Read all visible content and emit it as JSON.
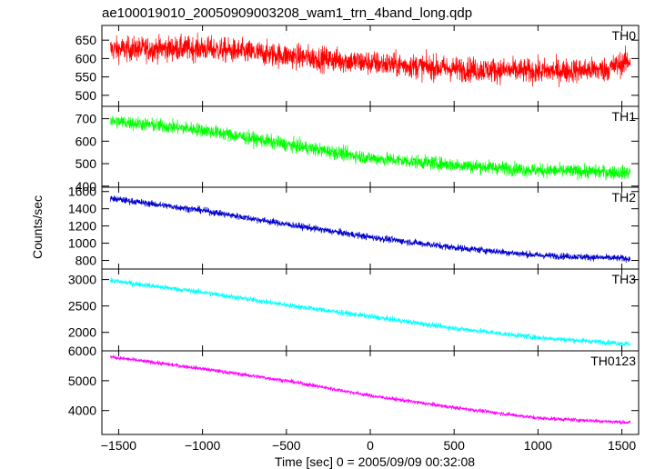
{
  "chart_data": {
    "type": "line",
    "title": "ae100019010_20050909003208_wam1_trn_4band_long.qdp",
    "xlabel": "Time [sec] 0 = 2005/09/09 00:32:08",
    "ylabel": "Counts/sec",
    "xlim": [
      -1600,
      1600
    ],
    "x_ticks": [
      -1500,
      -1000,
      -500,
      0,
      500,
      1000,
      1500
    ],
    "x_tick_labels": [
      "−1500",
      "−1000",
      "−500",
      "0",
      "500",
      "1000",
      "1500"
    ],
    "shared_x_range": [
      -1550,
      1550
    ],
    "panels": [
      {
        "name": "TH0",
        "color": "#ff0000",
        "ylim": [
          470,
          690
        ],
        "y_ticks": [
          500,
          550,
          600,
          650
        ],
        "trend": {
          "x": [
            -1550,
            -1000,
            -500,
            0,
            500,
            1000,
            1400,
            1550
          ],
          "y": [
            625,
            628,
            608,
            588,
            572,
            565,
            570,
            595
          ]
        },
        "scatter": 60
      },
      {
        "name": "TH1",
        "color": "#00ff00",
        "ylim": [
          395,
          755
        ],
        "y_ticks": [
          400,
          500,
          600,
          700
        ],
        "trend": {
          "x": [
            -1550,
            -1000,
            -500,
            0,
            500,
            1000,
            1550
          ],
          "y": [
            690,
            650,
            585,
            525,
            495,
            470,
            460
          ]
        },
        "scatter": 55
      },
      {
        "name": "TH2",
        "color": "#0000cc",
        "ylim": [
          700,
          1650
        ],
        "y_ticks": [
          800,
          1000,
          1200,
          1400,
          1600
        ],
        "trend": {
          "x": [
            -1550,
            -1000,
            -500,
            0,
            500,
            1000,
            1550
          ],
          "y": [
            1520,
            1380,
            1220,
            1070,
            950,
            860,
            820
          ]
        },
        "scatter": 70
      },
      {
        "name": "TH3",
        "color": "#00ffff",
        "ylim": [
          1650,
          3200
        ],
        "y_ticks": [
          2000,
          2500,
          3000
        ],
        "trend": {
          "x": [
            -1550,
            -1000,
            -500,
            0,
            500,
            1000,
            1550
          ],
          "y": [
            2980,
            2760,
            2520,
            2300,
            2080,
            1900,
            1780
          ]
        },
        "scatter": 90
      },
      {
        "name": "TH0123",
        "color": "#ff00ff",
        "ylim": [
          3200,
          6000
        ],
        "y_ticks": [
          4000,
          5000,
          6000
        ],
        "trend": {
          "x": [
            -1550,
            -1000,
            -500,
            0,
            500,
            1000,
            1550
          ],
          "y": [
            5800,
            5400,
            5000,
            4500,
            4100,
            3750,
            3600
          ]
        },
        "scatter": 120
      }
    ]
  }
}
